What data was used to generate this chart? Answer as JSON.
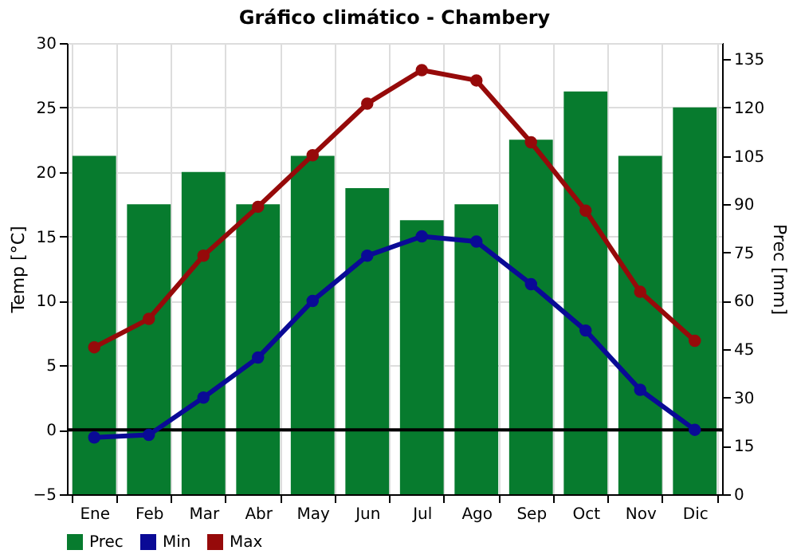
{
  "chart_data": {
    "type": "bar",
    "title": "Gráfico climático - Chambery",
    "ylabel": "Temp [°C]",
    "y2label": "Prec [mm]",
    "categories": [
      "Ene",
      "Feb",
      "Mar",
      "Abr",
      "May",
      "Jun",
      "Jul",
      "Ago",
      "Sep",
      "Oct",
      "Nov",
      "Dic"
    ],
    "series": [
      {
        "name": "Prec",
        "axis": "y2",
        "color": "#077b2e",
        "values": [
          105,
          90,
          100,
          90,
          105,
          95,
          85,
          90,
          110,
          125,
          105,
          120
        ]
      },
      {
        "name": "Min",
        "type": "line",
        "axis": "y",
        "color": "#0a0a96",
        "values": [
          -0.6,
          -0.4,
          2.5,
          5.6,
          10.0,
          13.5,
          15.0,
          14.6,
          11.3,
          7.7,
          3.1,
          0.0
        ]
      },
      {
        "name": "Max",
        "type": "line",
        "axis": "y",
        "color": "#960a0a",
        "values": [
          6.4,
          8.6,
          13.5,
          17.3,
          21.3,
          25.3,
          27.9,
          27.1,
          22.3,
          17.0,
          10.7,
          6.9
        ]
      }
    ],
    "ylim": [
      -5,
      30
    ],
    "yticks": [
      -5,
      0,
      5,
      10,
      15,
      20,
      25,
      30
    ],
    "y2lim": [
      0,
      140
    ],
    "y2ticks": [
      0,
      15,
      30,
      45,
      60,
      75,
      90,
      105,
      120,
      135
    ],
    "ref_lines": [
      {
        "axis": "y",
        "value": 0,
        "color": "#000000"
      }
    ],
    "grid": true,
    "legend": "bottom left",
    "marker": "circle",
    "line_style": "solid"
  }
}
